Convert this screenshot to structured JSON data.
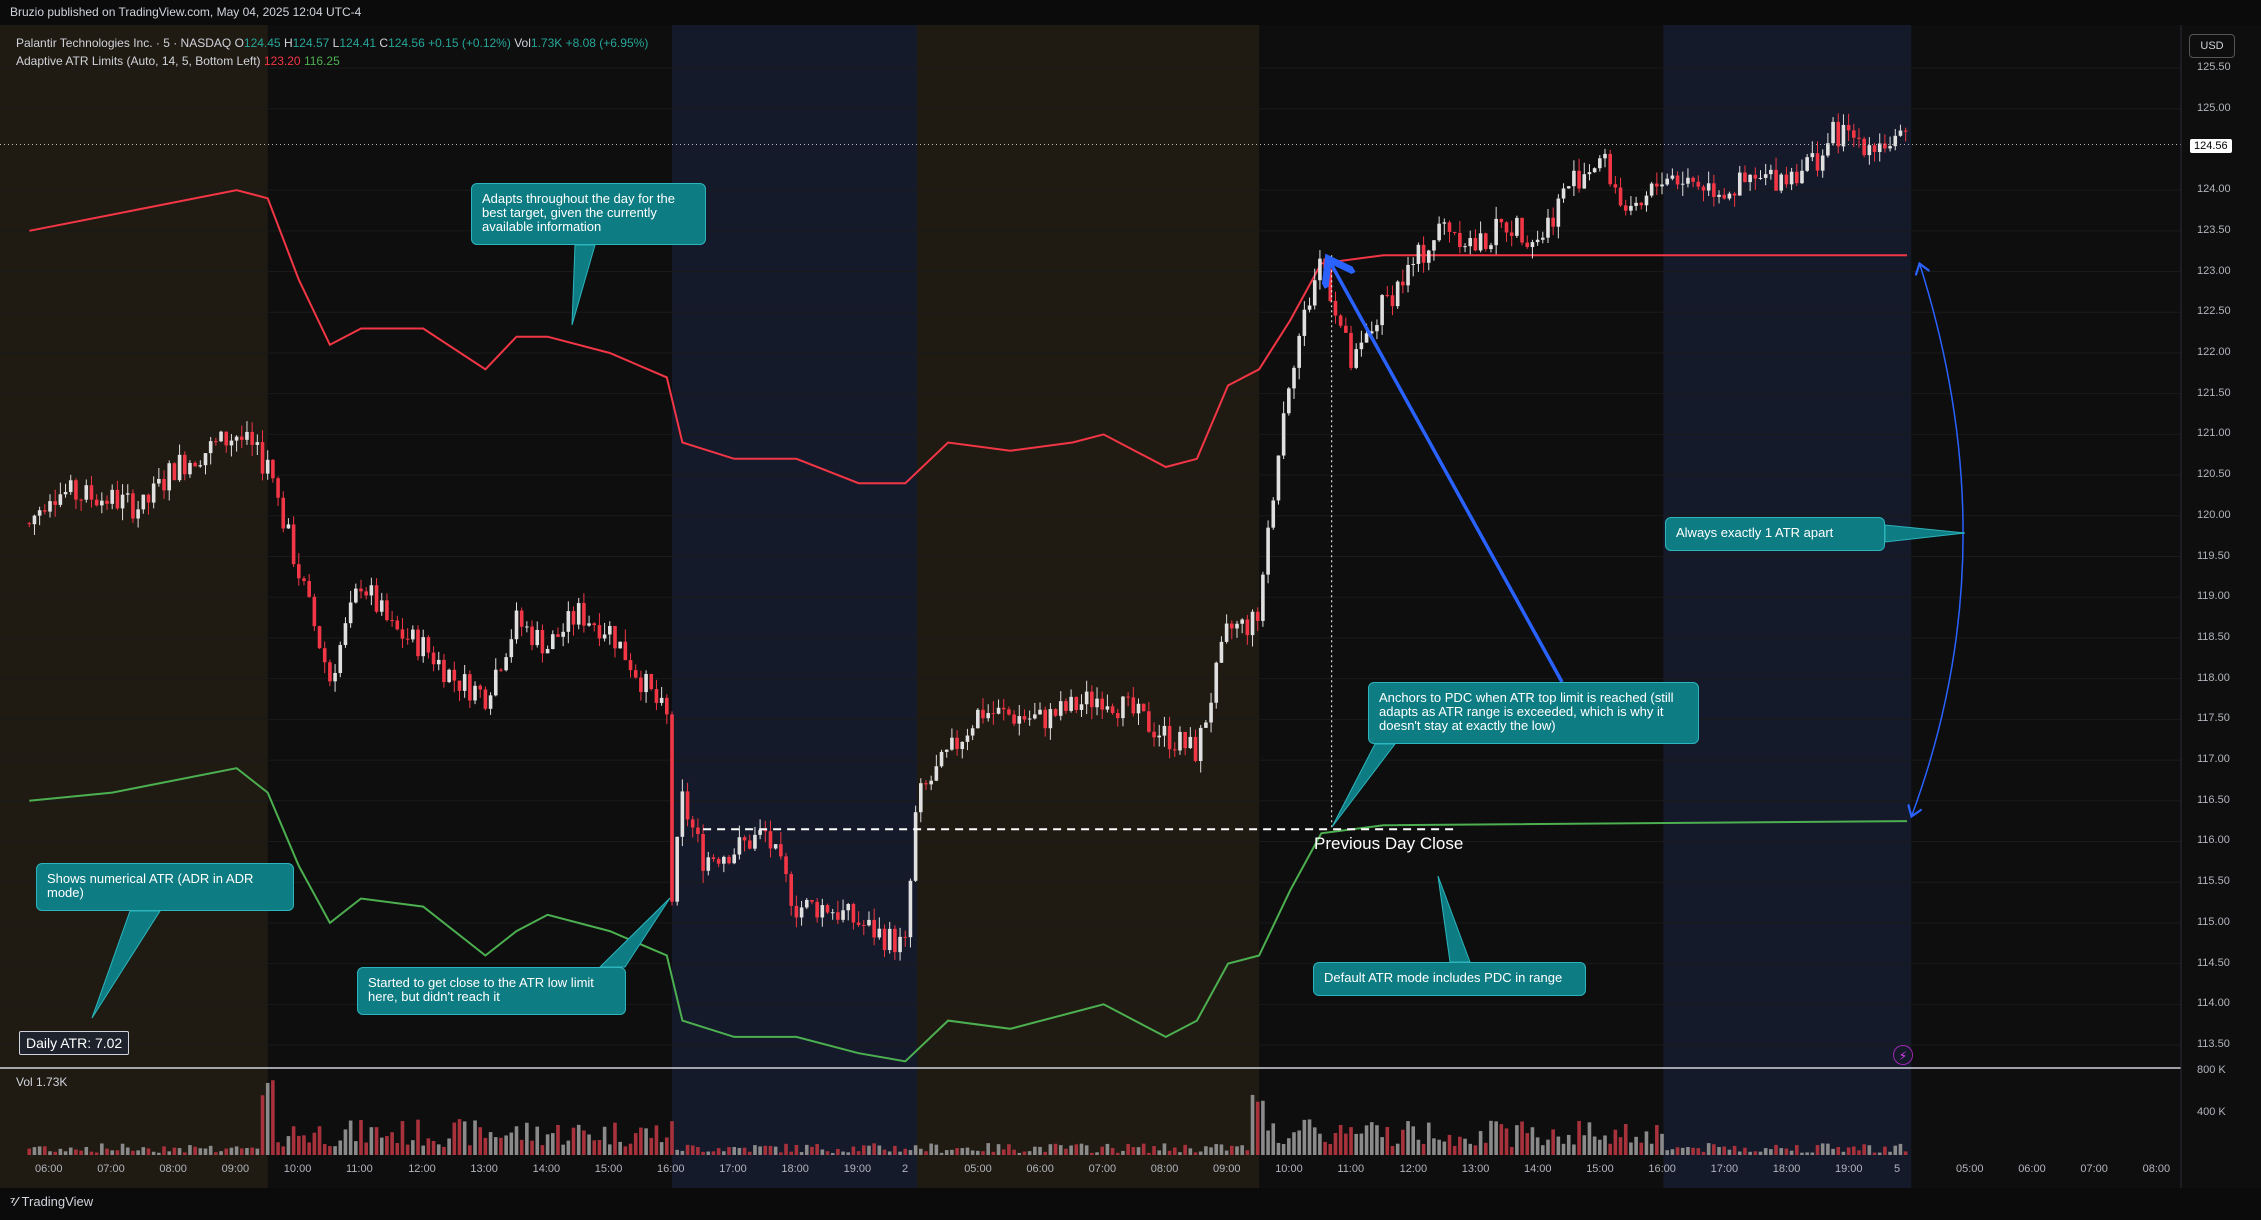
{
  "header": {
    "published_text": "Bruzio published on TradingView.com, May 04, 2025 12:04 UTC-4"
  },
  "legend": {
    "symbol": "Palantir Technologies Inc. · 5 · NASDAQ",
    "o_label": "O",
    "o_value": "124.45",
    "h_label": "H",
    "h_value": "124.57",
    "l_label": "L",
    "l_value": "124.41",
    "c_label": "C",
    "c_value": "124.56",
    "change": "+0.15 (+0.12%)",
    "vol_label": "Vol",
    "vol_value": "1.73K",
    "extra_change": "+8.08 (+6.95%)",
    "indicator": "Adaptive ATR Limits (Auto, 14, 5, Bottom Left)",
    "indicator_top": "123.20",
    "indicator_bottom": "116.25"
  },
  "currency": "USD",
  "last_price": "124.56",
  "daily_atr": "Daily ATR: 7.02",
  "volume_legend": {
    "label": "Vol",
    "value": "1.73K"
  },
  "volume_axis": [
    "800 K",
    "400 K"
  ],
  "price_axis": [
    "125.50",
    "125.00",
    "124.00",
    "123.50",
    "123.00",
    "122.50",
    "122.00",
    "121.50",
    "121.00",
    "120.50",
    "120.00",
    "119.50",
    "119.00",
    "118.50",
    "118.00",
    "117.50",
    "117.00",
    "116.50",
    "116.00",
    "115.50",
    "115.00",
    "114.50",
    "114.00",
    "113.50"
  ],
  "time_axis": [
    "06:00",
    "07:00",
    "08:00",
    "09:00",
    "10:00",
    "11:00",
    "12:00",
    "13:00",
    "14:00",
    "15:00",
    "16:00",
    "17:00",
    "18:00",
    "19:00",
    "2",
    "05:00",
    "06:00",
    "07:00",
    "08:00",
    "09:00",
    "10:00",
    "11:00",
    "12:00",
    "13:00",
    "14:00",
    "15:00",
    "16:00",
    "17:00",
    "18:00",
    "19:00",
    "5",
    "05:00",
    "06:00",
    "07:00",
    "08:00"
  ],
  "annotations": {
    "adapts": "Adapts throughout the day for the best target, given the currently available information",
    "numerical_atr": "Shows numerical ATR (ADR in ADR mode)",
    "started_close": "Started to get close to the ATR low limit here, but didn't reach it",
    "anchors_pdc": "Anchors to PDC when ATR top limit is reached (still adapts as ATR range is exceeded, which is why it doesn't stay at exactly the low)",
    "always_apart": "Always exactly 1 ATR apart",
    "default_mode": "Default ATR mode includes PDC in range",
    "pdc_label": "Previous Day Close"
  },
  "footer": {
    "brand": "TradingView"
  },
  "colors": {
    "background": "#0e0e0e",
    "premarket": "#1f1a12",
    "afterhours": "#141a2a",
    "upper_limit": "#f23645",
    "lower_limit": "#4caf50",
    "callout": "#0d7c83",
    "arrow": "#2962ff"
  },
  "chart_data": {
    "type": "candlestick",
    "symbol": "PLTR",
    "interval": "5",
    "ylim": [
      113.3,
      125.7
    ],
    "close_path": [
      {
        "t": "05:40",
        "c": 119.9
      },
      {
        "t": "06:00",
        "c": 120.3
      },
      {
        "t": "07:00",
        "c": 120.2
      },
      {
        "t": "07:30",
        "c": 120.1
      },
      {
        "t": "08:00",
        "c": 120.6
      },
      {
        "t": "08:30",
        "c": 120.8
      },
      {
        "t": "09:00",
        "c": 121.0
      },
      {
        "t": "09:30",
        "c": 120.6
      },
      {
        "t": "10:00",
        "c": 119.3
      },
      {
        "t": "10:30",
        "c": 118.0
      },
      {
        "t": "11:00",
        "c": 119.2
      },
      {
        "t": "11:30",
        "c": 118.6
      },
      {
        "t": "12:00",
        "c": 118.4
      },
      {
        "t": "12:30",
        "c": 118.0
      },
      {
        "t": "13:00",
        "c": 117.8
      },
      {
        "t": "13:30",
        "c": 118.7
      },
      {
        "t": "14:00",
        "c": 118.4
      },
      {
        "t": "14:30",
        "c": 118.8
      },
      {
        "t": "15:00",
        "c": 118.6
      },
      {
        "t": "15:30",
        "c": 118.0
      },
      {
        "t": "15:55",
        "c": 117.5
      },
      {
        "t": "16:00",
        "c": 115.3
      },
      {
        "t": "16:10",
        "c": 116.5
      },
      {
        "t": "16:30",
        "c": 115.8
      },
      {
        "t": "17:00",
        "c": 115.9
      },
      {
        "t": "17:30",
        "c": 116.1
      },
      {
        "t": "18:00",
        "c": 115.2
      },
      {
        "t": "18:30",
        "c": 115.2
      },
      {
        "t": "19:00",
        "c": 115.0
      },
      {
        "t": "19:45",
        "c": 114.7
      },
      {
        "t": "D2 04:00",
        "c": 116.5
      },
      {
        "t": "D2 05:00",
        "c": 117.6
      },
      {
        "t": "D2 06:00",
        "c": 117.5
      },
      {
        "t": "D2 07:00",
        "c": 117.8
      },
      {
        "t": "D2 08:00",
        "c": 117.3
      },
      {
        "t": "D2 08:30",
        "c": 117.1
      },
      {
        "t": "D2 09:00",
        "c": 118.6
      },
      {
        "t": "D2 09:30",
        "c": 118.7
      },
      {
        "t": "D2 09:45",
        "c": 120.5
      },
      {
        "t": "D2 10:00",
        "c": 121.8
      },
      {
        "t": "D2 10:30",
        "c": 123.2
      },
      {
        "t": "D2 11:00",
        "c": 121.8
      },
      {
        "t": "D2 11:30",
        "c": 122.6
      },
      {
        "t": "D2 12:00",
        "c": 123.1
      },
      {
        "t": "D2 12:30",
        "c": 123.6
      },
      {
        "t": "D2 13:00",
        "c": 123.3
      },
      {
        "t": "D2 13:30",
        "c": 123.6
      },
      {
        "t": "D2 14:00",
        "c": 123.4
      },
      {
        "t": "D2 14:30",
        "c": 124.1
      },
      {
        "t": "D2 15:00",
        "c": 124.4
      },
      {
        "t": "D2 15:30",
        "c": 123.6
      },
      {
        "t": "D2 16:00",
        "c": 124.2
      },
      {
        "t": "D2 17:00",
        "c": 124.0
      },
      {
        "t": "D2 18:00",
        "c": 124.2
      },
      {
        "t": "D2 18:30",
        "c": 124.4
      },
      {
        "t": "D2 18:45",
        "c": 124.7
      },
      {
        "t": "D2 19:15",
        "c": 124.6
      },
      {
        "t": "D2 19:55",
        "c": 124.56
      }
    ],
    "upper_limit": [
      {
        "t": "05:40",
        "v": 123.5
      },
      {
        "t": "07:00",
        "v": 123.7
      },
      {
        "t": "09:00",
        "v": 124.0
      },
      {
        "t": "09:30",
        "v": 123.9
      },
      {
        "t": "10:00",
        "v": 122.9
      },
      {
        "t": "10:30",
        "v": 122.1
      },
      {
        "t": "11:00",
        "v": 122.3
      },
      {
        "t": "12:00",
        "v": 122.3
      },
      {
        "t": "13:00",
        "v": 121.8
      },
      {
        "t": "13:30",
        "v": 122.2
      },
      {
        "t": "14:00",
        "v": 122.2
      },
      {
        "t": "15:00",
        "v": 122.0
      },
      {
        "t": "15:55",
        "v": 121.7
      },
      {
        "t": "16:10",
        "v": 120.9
      },
      {
        "t": "17:00",
        "v": 120.7
      },
      {
        "t": "18:00",
        "v": 120.7
      },
      {
        "t": "19:00",
        "v": 120.4
      },
      {
        "t": "19:45",
        "v": 120.4
      },
      {
        "t": "D2 04:30",
        "v": 120.9
      },
      {
        "t": "D2 05:30",
        "v": 120.8
      },
      {
        "t": "D2 06:30",
        "v": 120.9
      },
      {
        "t": "D2 07:00",
        "v": 121.0
      },
      {
        "t": "D2 08:00",
        "v": 120.6
      },
      {
        "t": "D2 08:30",
        "v": 120.7
      },
      {
        "t": "D2 09:00",
        "v": 121.6
      },
      {
        "t": "D2 09:30",
        "v": 121.8
      },
      {
        "t": "D2 10:00",
        "v": 122.4
      },
      {
        "t": "D2 10:30",
        "v": 123.1
      },
      {
        "t": "D2 11:30",
        "v": 123.2
      },
      {
        "t": "D2 19:55",
        "v": 123.2
      }
    ],
    "lower_limit": [
      {
        "t": "05:40",
        "v": 116.5
      },
      {
        "t": "07:00",
        "v": 116.6
      },
      {
        "t": "09:00",
        "v": 116.9
      },
      {
        "t": "09:30",
        "v": 116.6
      },
      {
        "t": "10:00",
        "v": 115.7
      },
      {
        "t": "10:30",
        "v": 115.0
      },
      {
        "t": "11:00",
        "v": 115.3
      },
      {
        "t": "12:00",
        "v": 115.2
      },
      {
        "t": "13:00",
        "v": 114.6
      },
      {
        "t": "13:30",
        "v": 114.9
      },
      {
        "t": "14:00",
        "v": 115.1
      },
      {
        "t": "15:00",
        "v": 114.9
      },
      {
        "t": "15:55",
        "v": 114.6
      },
      {
        "t": "16:10",
        "v": 113.8
      },
      {
        "t": "17:00",
        "v": 113.6
      },
      {
        "t": "18:00",
        "v": 113.6
      },
      {
        "t": "19:00",
        "v": 113.4
      },
      {
        "t": "19:45",
        "v": 113.3
      },
      {
        "t": "D2 04:30",
        "v": 113.8
      },
      {
        "t": "D2 05:30",
        "v": 113.7
      },
      {
        "t": "D2 06:30",
        "v": 113.9
      },
      {
        "t": "D2 07:00",
        "v": 114.0
      },
      {
        "t": "D2 08:00",
        "v": 113.6
      },
      {
        "t": "D2 08:30",
        "v": 113.8
      },
      {
        "t": "D2 09:00",
        "v": 114.5
      },
      {
        "t": "D2 09:30",
        "v": 114.6
      },
      {
        "t": "D2 10:00",
        "v": 115.4
      },
      {
        "t": "D2 10:30",
        "v": 116.1
      },
      {
        "t": "D2 11:30",
        "v": 116.2
      },
      {
        "t": "D2 19:55",
        "v": 116.25
      }
    ],
    "previous_day_close": 116.15,
    "daily_atr": 7.02
  }
}
